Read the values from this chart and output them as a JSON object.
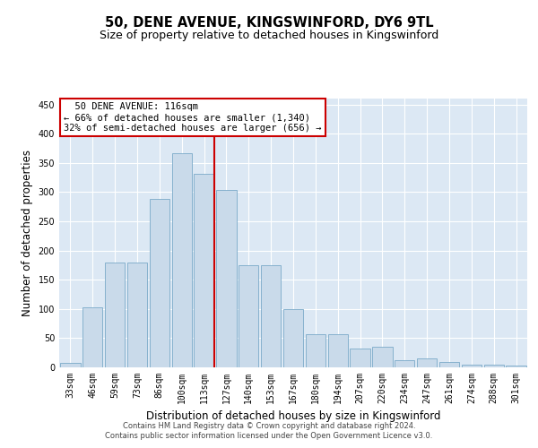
{
  "title": "50, DENE AVENUE, KINGSWINFORD, DY6 9TL",
  "subtitle": "Size of property relative to detached houses in Kingswinford",
  "xlabel": "Distribution of detached houses by size in Kingswinford",
  "ylabel": "Number of detached properties",
  "categories": [
    "33sqm",
    "46sqm",
    "59sqm",
    "73sqm",
    "86sqm",
    "100sqm",
    "113sqm",
    "127sqm",
    "140sqm",
    "153sqm",
    "167sqm",
    "180sqm",
    "194sqm",
    "207sqm",
    "220sqm",
    "234sqm",
    "247sqm",
    "261sqm",
    "274sqm",
    "288sqm",
    "301sqm"
  ],
  "values": [
    8,
    103,
    180,
    180,
    289,
    367,
    331,
    303,
    175,
    175,
    100,
    57,
    57,
    32,
    35,
    12,
    16,
    9,
    5,
    4,
    3
  ],
  "bar_color": "#c9daea",
  "bar_edge_color": "#7aaac8",
  "highlight_index": 6,
  "highlight_line_color": "#cc0000",
  "annotation_text": "  50 DENE AVENUE: 116sqm  \n← 66% of detached houses are smaller (1,340)\n32% of semi-detached houses are larger (656) →",
  "annotation_box_color": "#ffffff",
  "annotation_box_edge": "#cc0000",
  "ylim": [
    0,
    460
  ],
  "yticks": [
    0,
    50,
    100,
    150,
    200,
    250,
    300,
    350,
    400,
    450
  ],
  "background_color": "#dce8f4",
  "footer_line1": "Contains HM Land Registry data © Crown copyright and database right 2024.",
  "footer_line2": "Contains public sector information licensed under the Open Government Licence v3.0.",
  "title_fontsize": 10.5,
  "subtitle_fontsize": 9,
  "xlabel_fontsize": 8.5,
  "ylabel_fontsize": 8.5,
  "tick_fontsize": 7,
  "annotation_fontsize": 7.5,
  "footer_fontsize": 6
}
